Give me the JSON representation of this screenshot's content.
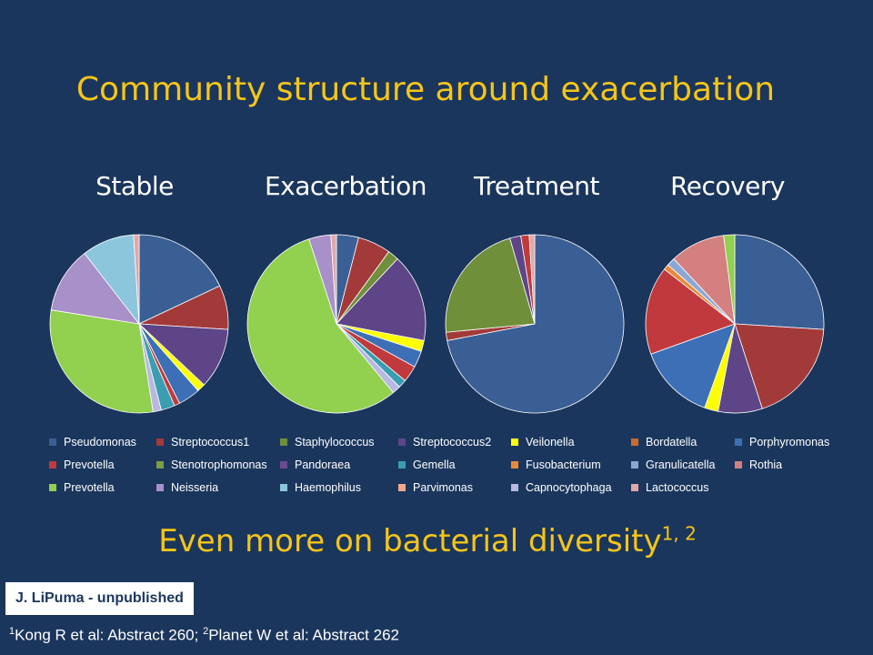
{
  "slide": {
    "title": "Community structure around exacerbation",
    "subtitle_main": "Even more on bacterial diversity",
    "subtitle_sup": "1, 2",
    "credit": "J. LiPuma - unpublished",
    "ref1_sup": "1",
    "ref1_text": "Kong R et al: Abstract 260; ",
    "ref2_sup": "2",
    "ref2_text": "Planet W et al: Abstract 262"
  },
  "chart_data": {
    "type": "pie",
    "legend_placement": "bottom",
    "legend": [
      {
        "name": "Pseudomonas",
        "color": "#3a5f95"
      },
      {
        "name": "Streptococcus1",
        "color": "#a33a3a"
      },
      {
        "name": "Staphylococcus",
        "color": "#6f8f3a"
      },
      {
        "name": "Streptococcus2",
        "color": "#5d4587"
      },
      {
        "name": "Veilonella",
        "color": "#ffff00"
      },
      {
        "name": "Bordatella",
        "color": "#c96a2e"
      },
      {
        "name": "Porphyromonas",
        "color": "#3d6fb6"
      },
      {
        "name": "Prevotella",
        "color": "#c03a3d"
      },
      {
        "name": "Stenotrophomonas",
        "color": "#7c9c45"
      },
      {
        "name": "Pandoraea",
        "color": "#6b4c90"
      },
      {
        "name": "Gemella",
        "color": "#3a9db0"
      },
      {
        "name": "Fusobacterium",
        "color": "#e88a3a"
      },
      {
        "name": "Granulicatella",
        "color": "#8aa8d4"
      },
      {
        "name": "Rothia",
        "color": "#d48080"
      },
      {
        "name": "Prevotella",
        "color": "#92d050"
      },
      {
        "name": "Neisseria",
        "color": "#a890c8"
      },
      {
        "name": "Haemophilus",
        "color": "#8cc6dc"
      },
      {
        "name": "Parvimonas",
        "color": "#f4a888"
      },
      {
        "name": "Capnocytophaga",
        "color": "#b8b8e0"
      },
      {
        "name": "Lactococcus",
        "color": "#e0a8a8"
      }
    ],
    "pies": [
      {
        "title": "Stable",
        "slices": [
          {
            "name": "Pseudomonas",
            "value": 18,
            "color": "#3a5f95"
          },
          {
            "name": "Streptococcus1",
            "value": 8,
            "color": "#a33a3a"
          },
          {
            "name": "Streptococcus2",
            "value": 11,
            "color": "#5d4587"
          },
          {
            "name": "Veilonella",
            "value": 1.5,
            "color": "#ffff00"
          },
          {
            "name": "Porphyromonas",
            "value": 4,
            "color": "#3d6fb6"
          },
          {
            "name": "Prevotella",
            "value": 1,
            "color": "#c03a3d"
          },
          {
            "name": "Gemella",
            "value": 2.5,
            "color": "#3a9db0"
          },
          {
            "name": "Capnocytophaga",
            "value": 1.5,
            "color": "#b8b8e0"
          },
          {
            "name": "Prevotella",
            "value": 30,
            "color": "#92d050"
          },
          {
            "name": "Neisseria",
            "value": 12,
            "color": "#a890c8"
          },
          {
            "name": "Haemophilus",
            "value": 9.5,
            "color": "#8cc6dc"
          },
          {
            "name": "Lactococcus",
            "value": 1,
            "color": "#e0a8a8"
          }
        ]
      },
      {
        "title": "Exacerbation",
        "slices": [
          {
            "name": "Pseudomonas",
            "value": 4,
            "color": "#3a5f95"
          },
          {
            "name": "Streptococcus1",
            "value": 6,
            "color": "#a33a3a"
          },
          {
            "name": "Staphylococcus",
            "value": 2,
            "color": "#6f8f3a"
          },
          {
            "name": "Streptococcus2",
            "value": 16,
            "color": "#5d4587"
          },
          {
            "name": "Veilonella",
            "value": 2,
            "color": "#ffff00"
          },
          {
            "name": "Porphyromonas",
            "value": 3,
            "color": "#3d6fb6"
          },
          {
            "name": "Prevotella",
            "value": 3,
            "color": "#c03a3d"
          },
          {
            "name": "Gemella",
            "value": 1.5,
            "color": "#3a9db0"
          },
          {
            "name": "Capnocytophaga",
            "value": 1.5,
            "color": "#b8b8e0"
          },
          {
            "name": "Prevotella",
            "value": 56,
            "color": "#92d050"
          },
          {
            "name": "Neisseria",
            "value": 4,
            "color": "#a890c8"
          },
          {
            "name": "Lactococcus",
            "value": 1,
            "color": "#e0a8a8"
          }
        ]
      },
      {
        "title": "Treatment",
        "slices": [
          {
            "name": "Pseudomonas",
            "value": 72,
            "color": "#3a5f95"
          },
          {
            "name": "Streptococcus1",
            "value": 1.5,
            "color": "#a33a3a"
          },
          {
            "name": "Staphylococcus",
            "value": 22,
            "color": "#6f8f3a"
          },
          {
            "name": "Streptococcus2",
            "value": 2,
            "color": "#5d4587"
          },
          {
            "name": "Prevotella",
            "value": 1.5,
            "color": "#c03a3d"
          },
          {
            "name": "Lactococcus",
            "value": 1,
            "color": "#e0a8a8"
          }
        ]
      },
      {
        "title": "Recovery",
        "slices": [
          {
            "name": "Pseudomonas",
            "value": 26,
            "color": "#3a5f95"
          },
          {
            "name": "Streptococcus1",
            "value": 19,
            "color": "#a33a3a"
          },
          {
            "name": "Streptococcus2",
            "value": 8,
            "color": "#5d4587"
          },
          {
            "name": "Veilonella",
            "value": 2.5,
            "color": "#ffff00"
          },
          {
            "name": "Porphyromonas",
            "value": 14,
            "color": "#3d6fb6"
          },
          {
            "name": "Prevotella",
            "value": 16,
            "color": "#c03a3d"
          },
          {
            "name": "Fusobacterium",
            "value": 1,
            "color": "#e88a3a"
          },
          {
            "name": "Granulicatella",
            "value": 1.5,
            "color": "#8aa8d4"
          },
          {
            "name": "Rothia",
            "value": 10,
            "color": "#d48080"
          },
          {
            "name": "Prevotella",
            "value": 2,
            "color": "#92d050"
          }
        ]
      }
    ]
  }
}
